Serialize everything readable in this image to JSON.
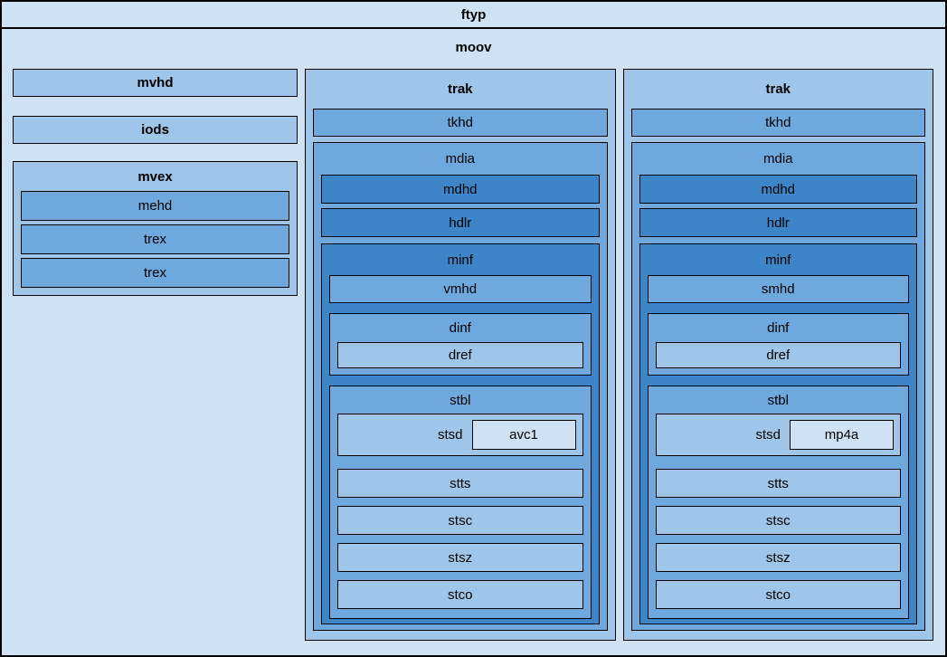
{
  "colors": {
    "l0": "#cfe2f3",
    "l1": "#9fc5e8",
    "l2": "#6fa8dc",
    "l3": "#3d85c6",
    "border": "#000000"
  },
  "ftyp_label": "ftyp",
  "moov_label": "moov",
  "left": {
    "mvhd": "mvhd",
    "iods": "iods",
    "mvex": {
      "label": "mvex",
      "rows": [
        "mehd",
        "trex",
        "trex"
      ]
    }
  },
  "traks": [
    {
      "label": "trak",
      "tkhd": "tkhd",
      "mdia": {
        "label": "mdia",
        "mdhd": "mdhd",
        "hdlr": "hdlr",
        "minf": {
          "label": "minf",
          "media_header": "vmhd",
          "dinf": {
            "label": "dinf",
            "dref": "dref"
          },
          "stbl": {
            "label": "stbl",
            "stsd_label": "stsd",
            "sample_entry": "avc1",
            "rows": [
              "stts",
              "stsc",
              "stsz",
              "stco"
            ]
          }
        }
      }
    },
    {
      "label": "trak",
      "tkhd": "tkhd",
      "mdia": {
        "label": "mdia",
        "mdhd": "mdhd",
        "hdlr": "hdlr",
        "minf": {
          "label": "minf",
          "media_header": "smhd",
          "dinf": {
            "label": "dinf",
            "dref": "dref"
          },
          "stbl": {
            "label": "stbl",
            "stsd_label": "stsd",
            "sample_entry": "mp4a",
            "rows": [
              "stts",
              "stsc",
              "stsz",
              "stco"
            ]
          }
        }
      }
    }
  ]
}
